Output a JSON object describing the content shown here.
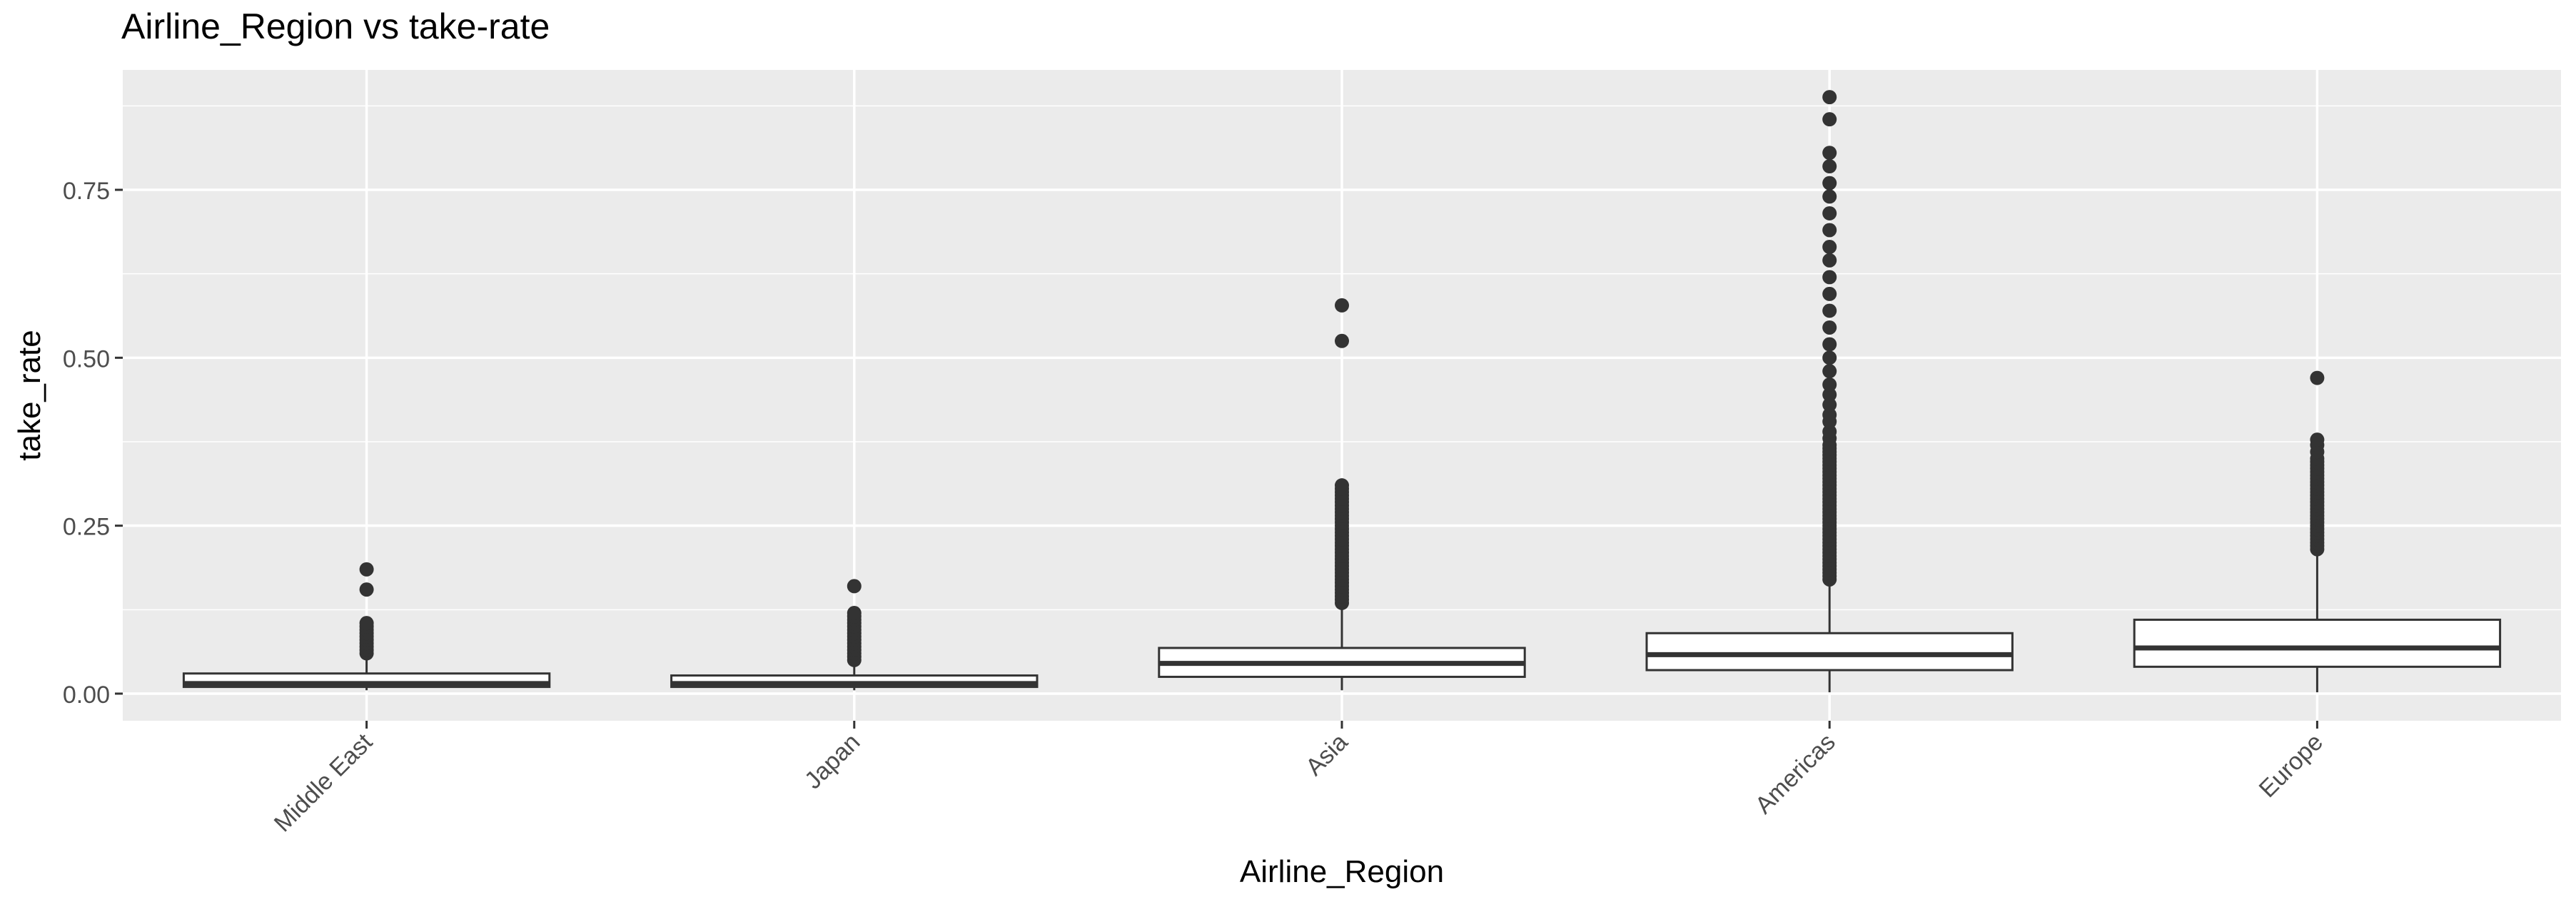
{
  "chart_data": {
    "type": "boxplot",
    "title": "Airline_Region vs take-rate",
    "xlabel": "Airline_Region",
    "ylabel": "take_rate",
    "ylim": [
      -0.04,
      0.9
    ],
    "yticks": [
      0.0,
      0.25,
      0.5,
      0.75
    ],
    "ytick_labels": [
      "0.00",
      "0.25",
      "0.50",
      "0.75"
    ],
    "grid": true,
    "categories": [
      "Middle East",
      "Japan",
      "Asia",
      "Americas",
      "Europe"
    ],
    "boxes": [
      {
        "category": "Middle East",
        "whisker_low": 0.005,
        "q1": 0.01,
        "median": 0.015,
        "q3": 0.03,
        "whisker_high": 0.055,
        "outliers": [
          0.06,
          0.065,
          0.07,
          0.075,
          0.08,
          0.085,
          0.09,
          0.095,
          0.1,
          0.105,
          0.155,
          0.185
        ]
      },
      {
        "category": "Japan",
        "whisker_low": 0.005,
        "q1": 0.01,
        "median": 0.015,
        "q3": 0.027,
        "whisker_high": 0.045,
        "outliers": [
          0.05,
          0.055,
          0.06,
          0.065,
          0.07,
          0.075,
          0.08,
          0.085,
          0.09,
          0.095,
          0.1,
          0.105,
          0.11,
          0.115,
          0.12,
          0.16
        ]
      },
      {
        "category": "Asia",
        "whisker_low": 0.005,
        "q1": 0.025,
        "median": 0.045,
        "q3": 0.068,
        "whisker_high": 0.13,
        "outliers": [
          0.135,
          0.14,
          0.145,
          0.15,
          0.155,
          0.16,
          0.165,
          0.17,
          0.175,
          0.18,
          0.185,
          0.19,
          0.195,
          0.2,
          0.205,
          0.21,
          0.215,
          0.22,
          0.225,
          0.23,
          0.235,
          0.24,
          0.245,
          0.25,
          0.255,
          0.26,
          0.265,
          0.27,
          0.275,
          0.28,
          0.285,
          0.29,
          0.295,
          0.3,
          0.305,
          0.31,
          0.525,
          0.578
        ]
      },
      {
        "category": "Americas",
        "whisker_low": 0.002,
        "q1": 0.035,
        "median": 0.058,
        "q3": 0.09,
        "whisker_high": 0.168,
        "outliers": [
          0.17,
          0.175,
          0.18,
          0.185,
          0.19,
          0.195,
          0.2,
          0.205,
          0.21,
          0.215,
          0.22,
          0.225,
          0.23,
          0.235,
          0.24,
          0.245,
          0.25,
          0.255,
          0.26,
          0.265,
          0.27,
          0.275,
          0.28,
          0.285,
          0.29,
          0.295,
          0.3,
          0.305,
          0.31,
          0.315,
          0.32,
          0.325,
          0.33,
          0.335,
          0.34,
          0.345,
          0.35,
          0.355,
          0.36,
          0.365,
          0.37,
          0.38,
          0.39,
          0.405,
          0.415,
          0.43,
          0.445,
          0.46,
          0.48,
          0.5,
          0.52,
          0.545,
          0.57,
          0.595,
          0.62,
          0.645,
          0.665,
          0.69,
          0.715,
          0.74,
          0.76,
          0.785,
          0.805,
          0.855,
          0.888
        ]
      },
      {
        "category": "Europe",
        "whisker_low": 0.002,
        "q1": 0.04,
        "median": 0.068,
        "q3": 0.11,
        "whisker_high": 0.21,
        "outliers": [
          0.215,
          0.22,
          0.225,
          0.23,
          0.235,
          0.24,
          0.245,
          0.25,
          0.255,
          0.26,
          0.265,
          0.27,
          0.275,
          0.28,
          0.285,
          0.29,
          0.295,
          0.3,
          0.305,
          0.31,
          0.315,
          0.32,
          0.325,
          0.33,
          0.335,
          0.34,
          0.345,
          0.35,
          0.36,
          0.37,
          0.378,
          0.47
        ]
      }
    ],
    "colors": {
      "panel_background": "#EBEBEB",
      "grid_major": "#FFFFFF",
      "box_fill": "#FFFFFF",
      "box_line": "#333333",
      "point": "#333333",
      "tick_label": "#4D4D4D"
    }
  }
}
